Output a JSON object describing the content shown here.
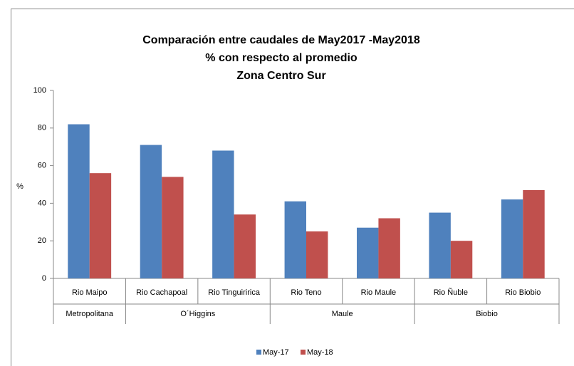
{
  "chart_data": {
    "type": "bar",
    "title": [
      "Comparación entre caudales de May2017 -May2018",
      "% con respecto al promedio",
      "Zona Centro Sur"
    ],
    "ylabel": "%",
    "groups": [
      {
        "name": "Metropolitana",
        "categories": [
          "Rio Maipo"
        ]
      },
      {
        "name": "O´Higgins",
        "categories": [
          "Rio Cachapoal",
          "Rio Tinguiririca"
        ]
      },
      {
        "name": "Maule",
        "categories": [
          "Rio Teno",
          "Rio Maule"
        ]
      },
      {
        "name": "Biobio",
        "categories": [
          "Rio Ñuble",
          "Rio Biobio"
        ]
      }
    ],
    "series": [
      {
        "name": "May-17",
        "color": "#4f81bd",
        "values": [
          82,
          71,
          68,
          41,
          27,
          35,
          42
        ]
      },
      {
        "name": "May-18",
        "color": "#c0504d",
        "values": [
          56,
          54,
          34,
          25,
          32,
          20,
          47
        ]
      }
    ],
    "ylim": [
      0,
      100
    ],
    "yticks": [
      0,
      20,
      40,
      60,
      80,
      100
    ],
    "grid": false,
    "legend": "bottom"
  }
}
